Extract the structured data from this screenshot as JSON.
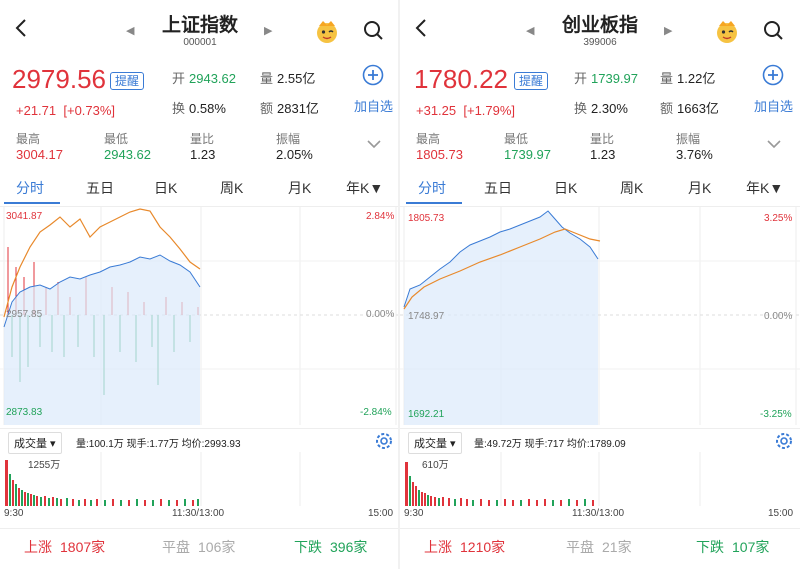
{
  "colors": {
    "up": "#e0333b",
    "down": "#21a35a",
    "accent": "#3a7bd5",
    "avg_line": "#e8892b"
  },
  "panels": [
    {
      "title": "上证指数",
      "code": "000001",
      "price": "2979.56",
      "remind_label": "提醒",
      "change": "+21.71",
      "change_pct": "[+0.73%]",
      "open_label": "开",
      "open": "2943.62",
      "volume_label": "量",
      "volume": "2.55亿",
      "turnover_label": "换",
      "turnover": "0.58%",
      "amount_label": "额",
      "amount": "2831亿",
      "add_label": "加自选",
      "stats": [
        {
          "label": "最高",
          "value": "3004.17"
        },
        {
          "label": "最低",
          "value": "2943.62"
        },
        {
          "label": "量比",
          "value": "1.23"
        },
        {
          "label": "振幅",
          "value": "2.05%"
        }
      ],
      "tabs": [
        "分时",
        "五日",
        "日K",
        "周K",
        "月K",
        "年K▼"
      ],
      "active_tab": "分时",
      "chart": {
        "top_price": "3041.87",
        "mid_price": "2957.85",
        "bottom_price": "2873.83",
        "top_pct": "2.84%",
        "mid_pct": "0.00%",
        "bottom_pct": "-2.84%"
      },
      "vol_select": "成交量 ▾",
      "vol_info": "量:100.1万  现手:1.77万  均价:2993.93",
      "vol_max": "1255万",
      "time_start": "9:30",
      "time_mid": "11:30/13:00",
      "time_end": "15:00",
      "up_label": "上涨",
      "up_count": "1807家",
      "flat_label": "平盘",
      "flat_count": "106家",
      "down_label": "下跌",
      "down_count": "396家"
    },
    {
      "title": "创业板指",
      "code": "399006",
      "price": "1780.22",
      "remind_label": "提醒",
      "change": "+31.25",
      "change_pct": "[+1.79%]",
      "open_label": "开",
      "open": "1739.97",
      "volume_label": "量",
      "volume": "1.22亿",
      "turnover_label": "换",
      "turnover": "2.30%",
      "amount_label": "额",
      "amount": "1663亿",
      "add_label": "加自选",
      "stats": [
        {
          "label": "最高",
          "value": "1805.73"
        },
        {
          "label": "最低",
          "value": "1739.97"
        },
        {
          "label": "量比",
          "value": "1.23"
        },
        {
          "label": "振幅",
          "value": "3.76%"
        }
      ],
      "tabs": [
        "分时",
        "五日",
        "日K",
        "周K",
        "月K",
        "年K▼"
      ],
      "active_tab": "分时",
      "chart": {
        "top_price": "1805.73",
        "mid_price": "1748.97",
        "bottom_price": "1692.21",
        "top_pct": "3.25%",
        "mid_pct": "0.00%",
        "bottom_pct": "-3.25%"
      },
      "vol_select": "成交量 ▾",
      "vol_info": "量:49.72万  现手:717  均价:1789.09",
      "vol_max": "610万",
      "time_start": "9:30",
      "time_mid": "11:30/13:00",
      "time_end": "15:00",
      "up_label": "上涨",
      "up_count": "1210家",
      "flat_label": "平盘",
      "flat_count": "21家",
      "down_label": "下跌",
      "down_count": "107家"
    }
  ]
}
